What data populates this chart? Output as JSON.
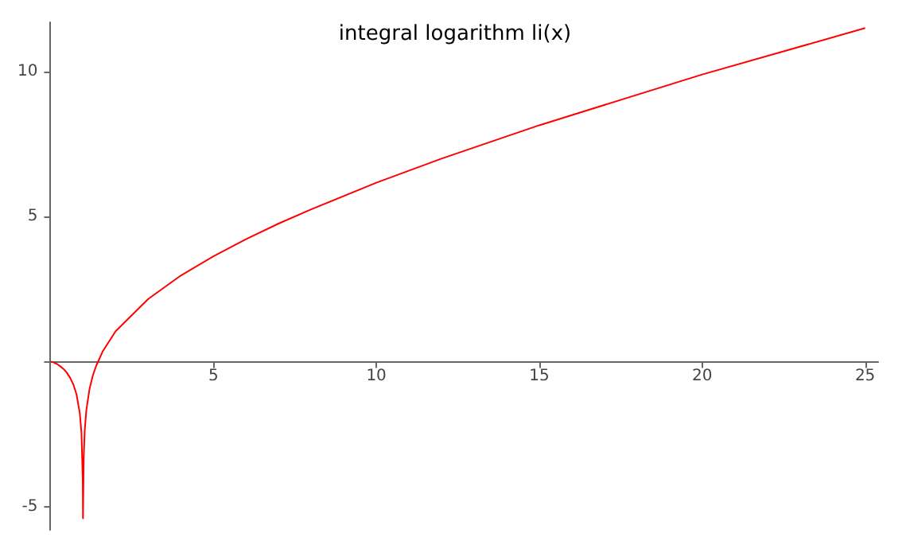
{
  "chart_data": {
    "type": "line",
    "title": "integral logarithm li(x)",
    "series": [
      {
        "color": "#ff0000",
        "x": [
          0,
          0.1,
          0.2,
          0.3,
          0.4,
          0.5,
          0.6,
          0.7,
          0.8,
          0.9,
          0.95,
          0.99,
          0.995,
          0.9975,
          1.005,
          1.02,
          1.05,
          1.1,
          1.2,
          1.3,
          1.4,
          1.6,
          2,
          3,
          4,
          5,
          6,
          7,
          8,
          10,
          12,
          15,
          20,
          25
        ],
        "values": [
          0,
          -0.03,
          -0.08,
          -0.16,
          -0.25,
          -0.38,
          -0.55,
          -0.78,
          -1.13,
          -1.78,
          -2.44,
          -4.03,
          -4.73,
          -5.4,
          -4.72,
          -3.33,
          -2.39,
          -1.68,
          -0.93,
          -0.48,
          -0.15,
          0.35,
          1.05,
          2.16,
          2.97,
          3.63,
          4.22,
          4.76,
          5.25,
          6.17,
          7.0,
          8.15,
          9.9,
          11.5
        ]
      }
    ],
    "xlim": [
      0,
      25.4
    ],
    "ylim": [
      -5.8,
      11.7
    ],
    "xticks": [
      {
        "value": 0,
        "label": null
      },
      5,
      10,
      15,
      20,
      25
    ],
    "yticks": [
      -5,
      {
        "value": 0,
        "label": null
      },
      5,
      10
    ],
    "grid": false,
    "marker": "none",
    "line_style": "solid"
  }
}
